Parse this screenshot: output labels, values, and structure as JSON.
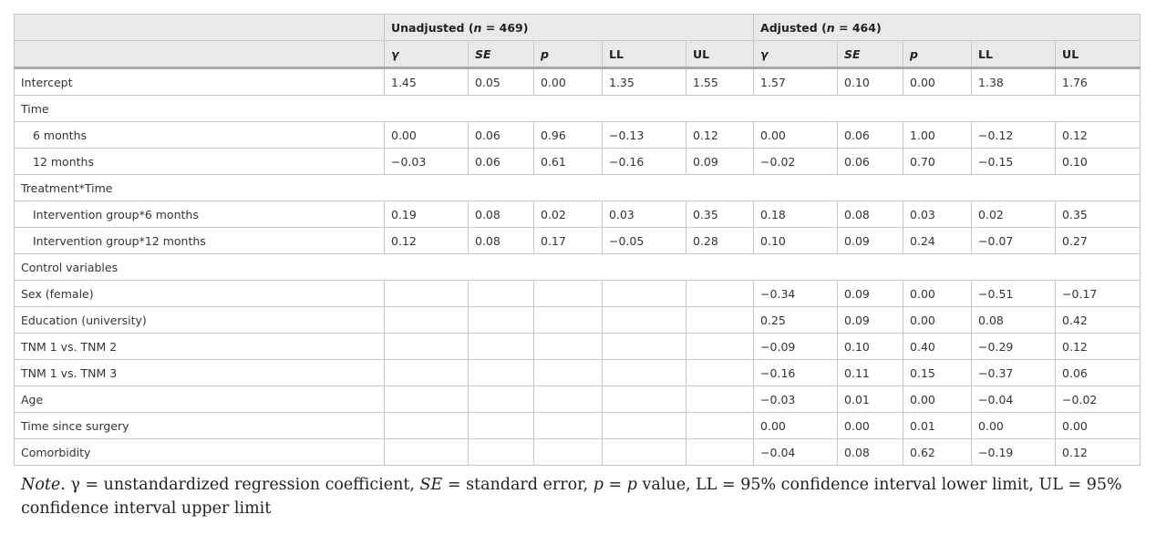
{
  "header": {
    "group_unadjusted": {
      "label": "Unadjusted",
      "n_prefix": "(",
      "n": "n",
      "n_suffix": " = 469)"
    },
    "group_adjusted": {
      "label": "Adjusted",
      "n_prefix": "(",
      "n": "n",
      "n_suffix": " = 464)"
    },
    "columns": [
      "γ",
      "SE",
      "p",
      "LL",
      "UL",
      "γ",
      "SE",
      "p",
      "LL",
      "UL"
    ]
  },
  "rows": [
    {
      "type": "data",
      "label": "Intercept",
      "indent": false,
      "values": [
        "1.45",
        "0.05",
        "0.00",
        "1.35",
        "1.55",
        "1.57",
        "0.10",
        "0.00",
        "1.38",
        "1.76"
      ]
    },
    {
      "type": "group",
      "label": "Time"
    },
    {
      "type": "data",
      "label": "6 months",
      "indent": true,
      "values": [
        "0.00",
        "0.06",
        "0.96",
        "−0.13",
        "0.12",
        "0.00",
        "0.06",
        "1.00",
        "−0.12",
        "0.12"
      ]
    },
    {
      "type": "data",
      "label": "12 months",
      "indent": true,
      "values": [
        "−0.03",
        "0.06",
        "0.61",
        "−0.16",
        "0.09",
        "−0.02",
        "0.06",
        "0.70",
        "−0.15",
        "0.10"
      ]
    },
    {
      "type": "group",
      "label": "Treatment*Time"
    },
    {
      "type": "data",
      "label": "Intervention group*6 months",
      "indent": true,
      "values": [
        "0.19",
        "0.08",
        "0.02",
        "0.03",
        "0.35",
        "0.18",
        "0.08",
        "0.03",
        "0.02",
        "0.35"
      ]
    },
    {
      "type": "data",
      "label": "Intervention group*12 months",
      "indent": true,
      "values": [
        "0.12",
        "0.08",
        "0.17",
        "−0.05",
        "0.28",
        "0.10",
        "0.09",
        "0.24",
        "−0.07",
        "0.27"
      ]
    },
    {
      "type": "group",
      "label": "Control variables"
    },
    {
      "type": "data",
      "label": "Sex (female)",
      "indent": false,
      "values": [
        "",
        "",
        "",
        "",
        "",
        "−0.34",
        "0.09",
        "0.00",
        "−0.51",
        "−0.17"
      ]
    },
    {
      "type": "data",
      "label": "Education (university)",
      "indent": false,
      "values": [
        "",
        "",
        "",
        "",
        "",
        "0.25",
        "0.09",
        "0.00",
        "0.08",
        "0.42"
      ]
    },
    {
      "type": "data",
      "label": "TNM 1 vs. TNM 2",
      "indent": false,
      "values": [
        "",
        "",
        "",
        "",
        "",
        "−0.09",
        "0.10",
        "0.40",
        "−0.29",
        "0.12"
      ]
    },
    {
      "type": "data",
      "label": "TNM 1 vs. TNM 3",
      "indent": false,
      "values": [
        "",
        "",
        "",
        "",
        "",
        "−0.16",
        "0.11",
        "0.15",
        "−0.37",
        "0.06"
      ]
    },
    {
      "type": "data",
      "label": "Age",
      "indent": false,
      "values": [
        "",
        "",
        "",
        "",
        "",
        "−0.03",
        "0.01",
        "0.00",
        "−0.04",
        "−0.02"
      ]
    },
    {
      "type": "data",
      "label": "Time since surgery",
      "indent": false,
      "values": [
        "",
        "",
        "",
        "",
        "",
        "0.00",
        "0.00",
        "0.01",
        "0.00",
        "0.00"
      ]
    },
    {
      "type": "data",
      "label": "Comorbidity",
      "indent": false,
      "values": [
        "",
        "",
        "",
        "",
        "",
        "−0.04",
        "0.08",
        "0.62",
        "−0.19",
        "0.12"
      ]
    }
  ],
  "note": {
    "lead": "Note",
    "part1": ". γ = unstandardized regression coefficient, ",
    "se": "SE",
    "part2": " = standard error, ",
    "p1": "p",
    "part3": " = ",
    "p2": "p",
    "part4": " value, LL = 95% confidence interval lower limit, UL = 95% confidence interval upper limit"
  }
}
